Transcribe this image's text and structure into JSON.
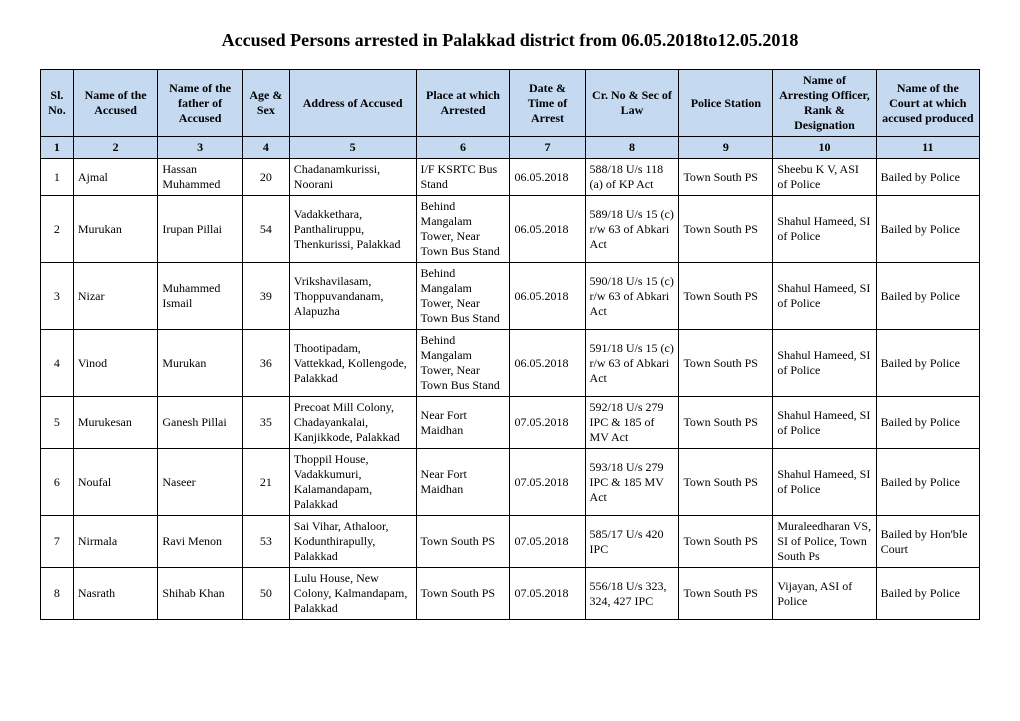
{
  "title": "Accused Persons arrested in Palakkad  district from 06.05.2018to12.05.2018",
  "headers": {
    "sl": "Sl. No.",
    "name": "Name of the Accused",
    "father": "Name of the father of Accused",
    "age": "Age & Sex",
    "address": "Address of Accused",
    "place": "Place at which Arrested",
    "datetime": "Date & Time of Arrest",
    "crno": "Cr. No & Sec of Law",
    "station": "Police Station",
    "officer": "Name of Arresting Officer, Rank & Designation",
    "court": "Name of the Court at which accused produced"
  },
  "numrow": [
    "1",
    "2",
    "3",
    "4",
    "5",
    "6",
    "7",
    "8",
    "9",
    "10",
    "11"
  ],
  "rows": [
    {
      "sl": "1",
      "name": "Ajmal",
      "father": "Hassan Muhammed",
      "age": "20",
      "address": "Chadanamkurissi, Noorani",
      "place": "I/F KSRTC Bus Stand",
      "datetime": "06.05.2018",
      "crno": "588/18 U/s 118 (a) of KP Act",
      "station": "Town South PS",
      "officer": "Sheebu K V, ASI of Police",
      "court": "Bailed by Police"
    },
    {
      "sl": "2",
      "name": "Murukan",
      "father": "Irupan Pillai",
      "age": "54",
      "address": "Vadakkethara, Panthaliruppu, Thenkurissi, Palakkad",
      "place": "Behind Mangalam Tower, Near Town Bus Stand",
      "datetime": "06.05.2018",
      "crno": "589/18 U/s 15 (c)  r/w 63 of Abkari Act",
      "station": "Town South PS",
      "officer": "Shahul Hameed, SI of Police",
      "court": "Bailed by Police"
    },
    {
      "sl": "3",
      "name": "Nizar",
      "father": "Muhammed Ismail",
      "age": "39",
      "address": "Vrikshavilasam, Thoppuvandanam, Alapuzha",
      "place": "Behind Mangalam Tower, Near Town Bus Stand",
      "datetime": "06.05.2018",
      "crno": "590/18 U/s 15 (c) r/w 63 of Abkari Act",
      "station": "Town South PS",
      "officer": "Shahul Hameed, SI of Police",
      "court": "Bailed by Police"
    },
    {
      "sl": "4",
      "name": "Vinod",
      "father": "Murukan",
      "age": "36",
      "address": "Thootipadam, Vattekkad, Kollengode, Palakkad",
      "place": "Behind Mangalam Tower, Near Town Bus Stand",
      "datetime": "06.05.2018",
      "crno": "591/18 U/s 15 (c) r/w 63 of Abkari Act",
      "station": "Town South PS",
      "officer": "Shahul Hameed, SI of Police",
      "court": "Bailed by Police"
    },
    {
      "sl": "5",
      "name": "Murukesan",
      "father": "Ganesh Pillai",
      "age": "35",
      "address": "Precoat Mill Colony, Chadayankalai, Kanjikkode, Palakkad",
      "place": "Near Fort Maidhan",
      "datetime": "07.05.2018",
      "crno": "592/18 U/s 279 IPC & 185 of MV Act",
      "station": "Town South PS",
      "officer": "Shahul Hameed, SI of Police",
      "court": "Bailed by Police"
    },
    {
      "sl": "6",
      "name": "Noufal",
      "father": "Naseer",
      "age": "21",
      "address": "Thoppil House, Vadakkumuri, Kalamandapam, Palakkad",
      "place": "Near Fort Maidhan",
      "datetime": "07.05.2018",
      "crno": "593/18 U/s 279 IPC & 185 MV Act",
      "station": "Town South PS",
      "officer": "Shahul Hameed, SI of Police",
      "court": "Bailed by Police"
    },
    {
      "sl": "7",
      "name": "Nirmala",
      "father": "Ravi Menon",
      "age": "53",
      "address": "Sai Vihar, Athaloor, Kodunthirapully, Palakkad",
      "place": "Town South PS",
      "datetime": "07.05.2018",
      "crno": "585/17 U/s 420 IPC",
      "station": "Town South PS",
      "officer": "Muraleedharan VS, SI of Police, Town South Ps",
      "court": "Bailed by Hon'ble Court"
    },
    {
      "sl": "8",
      "name": "Nasrath",
      "father": "Shihab Khan",
      "age": "50",
      "address": "Lulu House, New Colony, Kalmandapam, Palakkad",
      "place": "Town South PS",
      "datetime": "07.05.2018",
      "crno": "556/18 U/s 323, 324, 427 IPC",
      "station": "Town South PS",
      "officer": "Vijayan, ASI of Police",
      "court": "Bailed by Police"
    }
  ],
  "colors": {
    "header_bg": "#c5d9f1",
    "border": "#000000",
    "text": "#000000",
    "background": "#ffffff"
  }
}
